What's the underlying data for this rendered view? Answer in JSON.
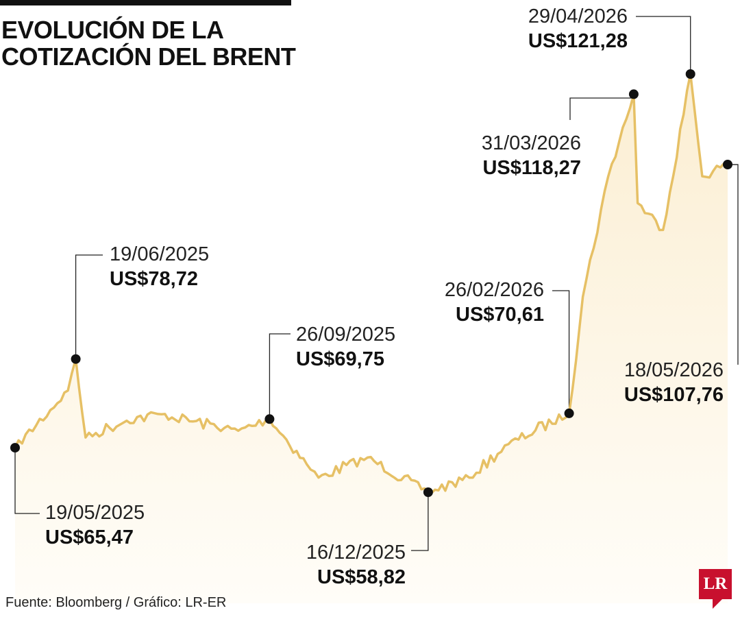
{
  "title_lines": [
    "EVOLUCIÓN DE LA",
    "COTIZACIÓN DEL BRENT"
  ],
  "source": "Fuente: Bloomberg / Gráfico: LR-ER",
  "logo_text": "LR",
  "colors": {
    "line": "#e6c065",
    "area_top": "#fbeed2",
    "area_bottom": "#fffdf8",
    "marker": "#111111",
    "logo": "#c8102e"
  },
  "chart_data": {
    "type": "area",
    "ylim": [
      50,
      130
    ],
    "x": [
      "19/05/2025",
      "15/06/2025",
      "19/06/2025",
      "24/06/2025",
      "15/07/2025",
      "31/07/2025",
      "10/09/2025",
      "26/09/2025",
      "15/10/2025",
      "21/10/2025",
      "15/11/2025",
      "16/12/2025",
      "06/01/2026",
      "26/01/2026",
      "26/02/2026",
      "05/03/2026",
      "18/03/2026",
      "31/03/2026",
      "02/04/2026",
      "15/04/2026",
      "29/04/2026",
      "05/05/2026",
      "18/05/2026"
    ],
    "values": [
      65.47,
      74.0,
      78.72,
      67.0,
      69.5,
      70.5,
      68.0,
      69.75,
      63.0,
      61.0,
      64.0,
      58.82,
      61.0,
      66.0,
      70.61,
      88.0,
      106.0,
      118.27,
      102.0,
      98.0,
      121.28,
      106.0,
      107.76
    ],
    "annotations": [
      {
        "date": "19/05/2025",
        "value": "US$65,47"
      },
      {
        "date": "19/06/2025",
        "value": "US$78,72"
      },
      {
        "date": "26/09/2025",
        "value": "US$69,75"
      },
      {
        "date": "16/12/2025",
        "value": "US$58,82"
      },
      {
        "date": "26/02/2026",
        "value": "US$70,61"
      },
      {
        "date": "31/03/2026",
        "value": "US$118,27"
      },
      {
        "date": "29/04/2026",
        "value": "US$121,28"
      },
      {
        "date": "18/05/2026",
        "value": "US$107,76"
      }
    ]
  }
}
